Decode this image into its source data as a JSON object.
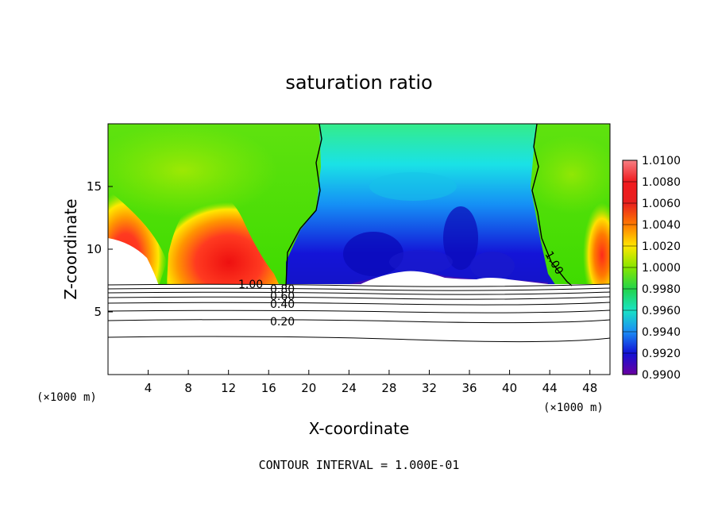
{
  "chart_data": {
    "type": "heatmap",
    "title": "saturation ratio",
    "xlabel": "X-coordinate",
    "ylabel": "Z-coordinate",
    "x_unit_left": "(×1000 m)",
    "x_unit_right": "(×1000 m)",
    "xlim": [
      0,
      50
    ],
    "ylim": [
      0,
      20
    ],
    "xticks": [
      4,
      8,
      12,
      16,
      20,
      24,
      28,
      32,
      36,
      40,
      44,
      48
    ],
    "yticks": [
      5,
      10,
      15
    ],
    "colorbar": {
      "levels": [
        "1.0100",
        "1.0080",
        "1.0060",
        "1.0040",
        "1.0020",
        "1.0000",
        "0.9980",
        "0.9960",
        "0.9940",
        "0.9920",
        "0.9900"
      ],
      "colors": [
        "#f77f83",
        "#e8201e",
        "#f06b00",
        "#ffcc00",
        "#b7ee00",
        "#39d800",
        "#33ec87",
        "#19dfe6",
        "#158ff5",
        "#1212d6",
        "#5a0090"
      ]
    },
    "contour_labels": [
      "1.00",
      "0.80",
      "0.60",
      "0.40",
      "0.20",
      "1.00"
    ],
    "footer": "CONTOUR INTERVAL = 1.000E-01"
  }
}
